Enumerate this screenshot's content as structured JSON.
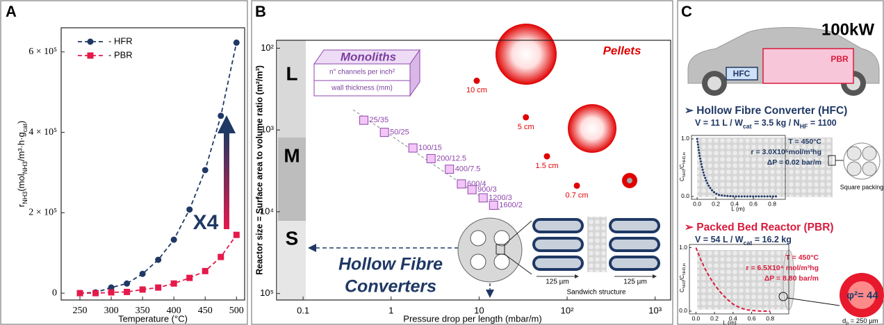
{
  "chart_data": [
    {
      "panel": "A",
      "type": "scatter",
      "xlabel": "Temperature (°C)",
      "ylabel": [
        "r",
        "NH3",
        "(mol",
        "NH3",
        "/m³·h·g",
        "cat",
        ")"
      ],
      "xlim": [
        220,
        513
      ],
      "xticks": [
        250,
        300,
        350,
        400,
        450,
        500
      ],
      "ylim": [
        -17000,
        660000
      ],
      "yticks": [
        0,
        {
          "value": 200000,
          "label": "2 × 10⁵"
        },
        {
          "value": 400000,
          "label": "4 × 10⁵"
        },
        {
          "value": 600000,
          "label": "6 × 10⁵"
        }
      ],
      "legend": "upper left",
      "fit": "dashed",
      "annotation": "X4",
      "series": [
        {
          "name": "- HFR",
          "color": "#1f3864",
          "marker": "circle",
          "x": [
            250,
            275,
            300,
            325,
            350,
            375,
            400,
            425,
            450,
            475,
            500
          ],
          "values": [
            0,
            2000,
            14000,
            24000,
            48000,
            83000,
            133000,
            208000,
            306000,
            441000,
            623000
          ]
        },
        {
          "name": "- PBR",
          "color": "#e5194b",
          "marker": "square",
          "x": [
            250,
            275,
            300,
            325,
            350,
            375,
            400,
            425,
            450,
            475,
            500
          ],
          "values": [
            0,
            0,
            2000,
            3000,
            9000,
            14000,
            24000,
            38000,
            55000,
            90000,
            145000
          ]
        }
      ]
    },
    {
      "panel": "B",
      "type": "scatter",
      "xscale": "log",
      "yscale": "log",
      "xlabel": "Pressure drop per length (mbar/m)",
      "ylabel": "Reactor size = Surface area to volume ratio (m²/m³)",
      "xlim": [
        0.05,
        1500
      ],
      "xticks": [
        0.1,
        1,
        10,
        {
          "value": 100,
          "label": "10²"
        },
        {
          "value": 1000,
          "label": "10³"
        }
      ],
      "ylim": [
        120000,
        80
      ],
      "yticks": [
        {
          "value": 100,
          "label": "10²"
        },
        {
          "value": 1000,
          "label": "10³"
        },
        {
          "value": 10000,
          "label": "10⁴"
        },
        {
          "value": 100000,
          "label": "10⁵"
        }
      ],
      "size_classes": [
        "L",
        "M",
        "S"
      ],
      "series": [
        {
          "name": "Monoliths",
          "color": "#f3c6f7",
          "edge": "#8e44ad",
          "marker": "square",
          "labels": [
            "25/35",
            "50/25",
            "100/15",
            "200/12.5",
            "400/7.5",
            "600/4",
            "900/3",
            "1200/3",
            "1600/2"
          ],
          "x": [
            0.49,
            0.84,
            1.77,
            2.84,
            4.6,
            6.3,
            8.3,
            11.1,
            14.6
          ],
          "values": [
            760,
            1070,
            1660,
            2240,
            3020,
            4570,
            5370,
            6760,
            8320
          ]
        },
        {
          "name": "Pellets",
          "color": "#e00000",
          "marker": "circle",
          "labels": [
            "10 cm",
            "5 cm",
            "1.5 cm",
            "0.7 cm"
          ],
          "x": [
            9.4,
            34,
            59,
            129
          ],
          "values": [
            250,
            700,
            2100,
            4800
          ]
        }
      ],
      "monolith_dims": [
        "n° channels per inch²",
        "wall thickness (mm)"
      ],
      "hfc_label": [
        "Hollow Fibre",
        "Converters"
      ],
      "scale_bars": [
        "125 µm",
        "125 µm"
      ],
      "structure_label": "Sandwich structure"
    },
    {
      "panel": "C",
      "type": "line",
      "power": "100kW",
      "car_labels": [
        "PBR",
        "HFC"
      ],
      "title": "➢ Hollow Fibre Converter (HFC)",
      "subtitle": [
        "V = 11 L / W",
        "cat",
        " = 3.5 kg / N",
        "HF",
        " = 1100"
      ],
      "conditions": [
        "T = 450°C",
        "r = 3.0X10⁵mol/m³hg",
        "ΔP = 0.02 bar/m"
      ],
      "inset_label": "Square packing",
      "xlabel": "L (m)",
      "ylabel": [
        "C",
        "NH3",
        "/C",
        "NH3,in"
      ],
      "xlim": [
        -0.06,
        0.94
      ],
      "xticks": [
        {
          "value": 0,
          "label": "0.0"
        },
        0.2,
        0.4,
        0.6,
        0.8
      ],
      "ylim": [
        -0.05,
        1.06
      ],
      "yticks": [
        {
          "value": 0,
          "label": "0.0"
        },
        {
          "value": 1,
          "label": "1.0"
        }
      ],
      "series": [
        {
          "color": "#1f3864",
          "linestyle": "dotted",
          "x": [
            0,
            0.025,
            0.05,
            0.075,
            0.1,
            0.125,
            0.15,
            0.175,
            0.2,
            0.225,
            0.25,
            0.3,
            0.4,
            0.5,
            0.6,
            0.7,
            0.8,
            0.85
          ],
          "values": [
            1.0,
            0.72,
            0.52,
            0.37,
            0.26,
            0.18,
            0.12,
            0.08,
            0.05,
            0.03,
            0.02,
            0.01,
            0,
            0,
            0,
            0,
            0,
            0
          ]
        }
      ]
    },
    {
      "type": "line",
      "title": "➢ Packed Bed Reactor (PBR)",
      "subtitle": [
        "V = 54 L / W",
        "cat",
        " = 16.2 kg"
      ],
      "conditions": [
        "T = 450°C",
        "r = 6.5X10⁴ mol/m³hg",
        "ΔP = 8.80 bar/m"
      ],
      "zoom_label": "φ²= 44",
      "particle_size": [
        "d",
        "p",
        " = 250 µm"
      ],
      "xlabel": "L (m)",
      "ylabel": [
        "C",
        "NH3",
        "/C",
        "NH3,in"
      ],
      "xlim": [
        -0.07,
        1.0
      ],
      "xticks": [
        {
          "value": 0,
          "label": "0.0"
        },
        0.2,
        0.4,
        0.6,
        0.8
      ],
      "ylim": [
        -0.044,
        1.05
      ],
      "yticks": [
        {
          "value": 0,
          "label": "0.0"
        },
        {
          "value": 1,
          "label": "1.0"
        }
      ],
      "series": [
        {
          "color": "#d81b3c",
          "linestyle": "dashed",
          "x": [
            0,
            0.05,
            0.1,
            0.15,
            0.2,
            0.25,
            0.3,
            0.35,
            0.4,
            0.45,
            0.5,
            0.55,
            0.6,
            0.7,
            0.8
          ],
          "values": [
            1.0,
            0.82,
            0.66,
            0.53,
            0.42,
            0.32,
            0.24,
            0.17,
            0.11,
            0.07,
            0.04,
            0.02,
            0.01,
            0,
            0
          ]
        }
      ]
    }
  ]
}
